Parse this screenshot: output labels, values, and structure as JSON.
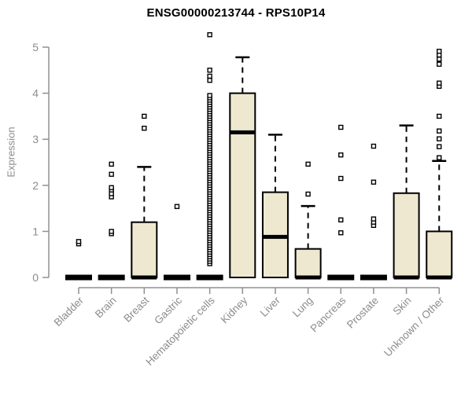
{
  "chart_data": {
    "type": "boxplot",
    "title": "ENSG00000213744 - RPS10P14",
    "ylabel": "Expression",
    "ylim": [
      0,
      5.4
    ],
    "yticks": [
      0,
      1,
      2,
      3,
      4,
      5
    ],
    "grid": false,
    "legend": "none",
    "box_fill_color": "#ede8cf",
    "box_border_color": "#000000",
    "axis_color": "#909090",
    "text_color": "#8c8c8c",
    "categories": [
      "Bladder",
      "Brain",
      "Breast",
      "Gastric",
      "Hematopoietic cells",
      "Kidney",
      "Liver",
      "Lung",
      "Pancreas",
      "Prostate",
      "Skin",
      "Unknown / Other"
    ],
    "series": [
      {
        "name": "Bladder",
        "q1": 0,
        "median": 0,
        "q3": 0,
        "whisker_low": 0,
        "whisker_high": 0,
        "outliers": [
          0.73,
          0.78
        ]
      },
      {
        "name": "Brain",
        "q1": 0,
        "median": 0,
        "q3": 0,
        "whisker_low": 0,
        "whisker_high": 0,
        "outliers": [
          0.95,
          1.0,
          1.75,
          1.82,
          1.9,
          1.95,
          2.24,
          2.46
        ]
      },
      {
        "name": "Breast",
        "q1": 0,
        "median": 0,
        "q3": 1.2,
        "whisker_low": 0,
        "whisker_high": 2.4,
        "outliers": [
          3.24,
          3.5
        ]
      },
      {
        "name": "Gastric",
        "q1": 0,
        "median": 0,
        "q3": 0,
        "whisker_low": 0,
        "whisker_high": 0,
        "outliers": [
          1.54
        ]
      },
      {
        "name": "Hematopoietic cells",
        "q1": 0,
        "median": 0,
        "q3": 0,
        "whisker_low": 0,
        "whisker_high": 0,
        "outliers": [
          0.3,
          0.35,
          0.4,
          0.45,
          0.5,
          0.55,
          0.6,
          0.65,
          0.7,
          0.75,
          0.8,
          0.85,
          0.9,
          0.95,
          1.0,
          1.05,
          1.1,
          1.15,
          1.2,
          1.25,
          1.3,
          1.35,
          1.4,
          1.45,
          1.5,
          1.55,
          1.6,
          1.65,
          1.7,
          1.75,
          1.8,
          1.85,
          1.9,
          1.95,
          2.0,
          2.05,
          2.1,
          2.15,
          2.2,
          2.25,
          2.3,
          2.35,
          2.4,
          2.45,
          2.5,
          2.55,
          2.6,
          2.65,
          2.7,
          2.75,
          2.8,
          2.85,
          2.9,
          2.95,
          3.0,
          3.05,
          3.1,
          3.15,
          3.2,
          3.25,
          3.3,
          3.35,
          3.4,
          3.45,
          3.5,
          3.55,
          3.6,
          3.65,
          3.7,
          3.75,
          3.8,
          3.85,
          3.9,
          3.95,
          4.28,
          4.37,
          4.5,
          5.27
        ]
      },
      {
        "name": "Kidney",
        "q1": 0,
        "median": 3.15,
        "q3": 4.0,
        "whisker_low": 0,
        "whisker_high": 4.78,
        "outliers": []
      },
      {
        "name": "Liver",
        "q1": 0,
        "median": 0.88,
        "q3": 1.85,
        "whisker_low": 0,
        "whisker_high": 3.1,
        "outliers": []
      },
      {
        "name": "Lung",
        "q1": 0,
        "median": 0,
        "q3": 0.62,
        "whisker_low": 0,
        "whisker_high": 1.55,
        "outliers": [
          1.81,
          2.46
        ]
      },
      {
        "name": "Pancreas",
        "q1": 0,
        "median": 0,
        "q3": 0,
        "whisker_low": 0,
        "whisker_high": 0,
        "outliers": [
          0.97,
          1.25,
          2.15,
          2.66,
          3.26
        ]
      },
      {
        "name": "Prostate",
        "q1": 0,
        "median": 0,
        "q3": 0,
        "whisker_low": 0,
        "whisker_high": 0,
        "outliers": [
          1.13,
          1.2,
          1.27,
          2.07,
          2.85
        ]
      },
      {
        "name": "Skin",
        "q1": 0,
        "median": 0,
        "q3": 1.83,
        "whisker_low": 0,
        "whisker_high": 3.3,
        "outliers": []
      },
      {
        "name": "Unknown / Other",
        "q1": 0,
        "median": 0,
        "q3": 1.0,
        "whisker_low": 0,
        "whisker_high": 2.53,
        "outliers": [
          2.6,
          2.84,
          3.01,
          3.18,
          3.5,
          4.15,
          4.22,
          4.63,
          4.74,
          4.83,
          4.91
        ]
      }
    ]
  }
}
